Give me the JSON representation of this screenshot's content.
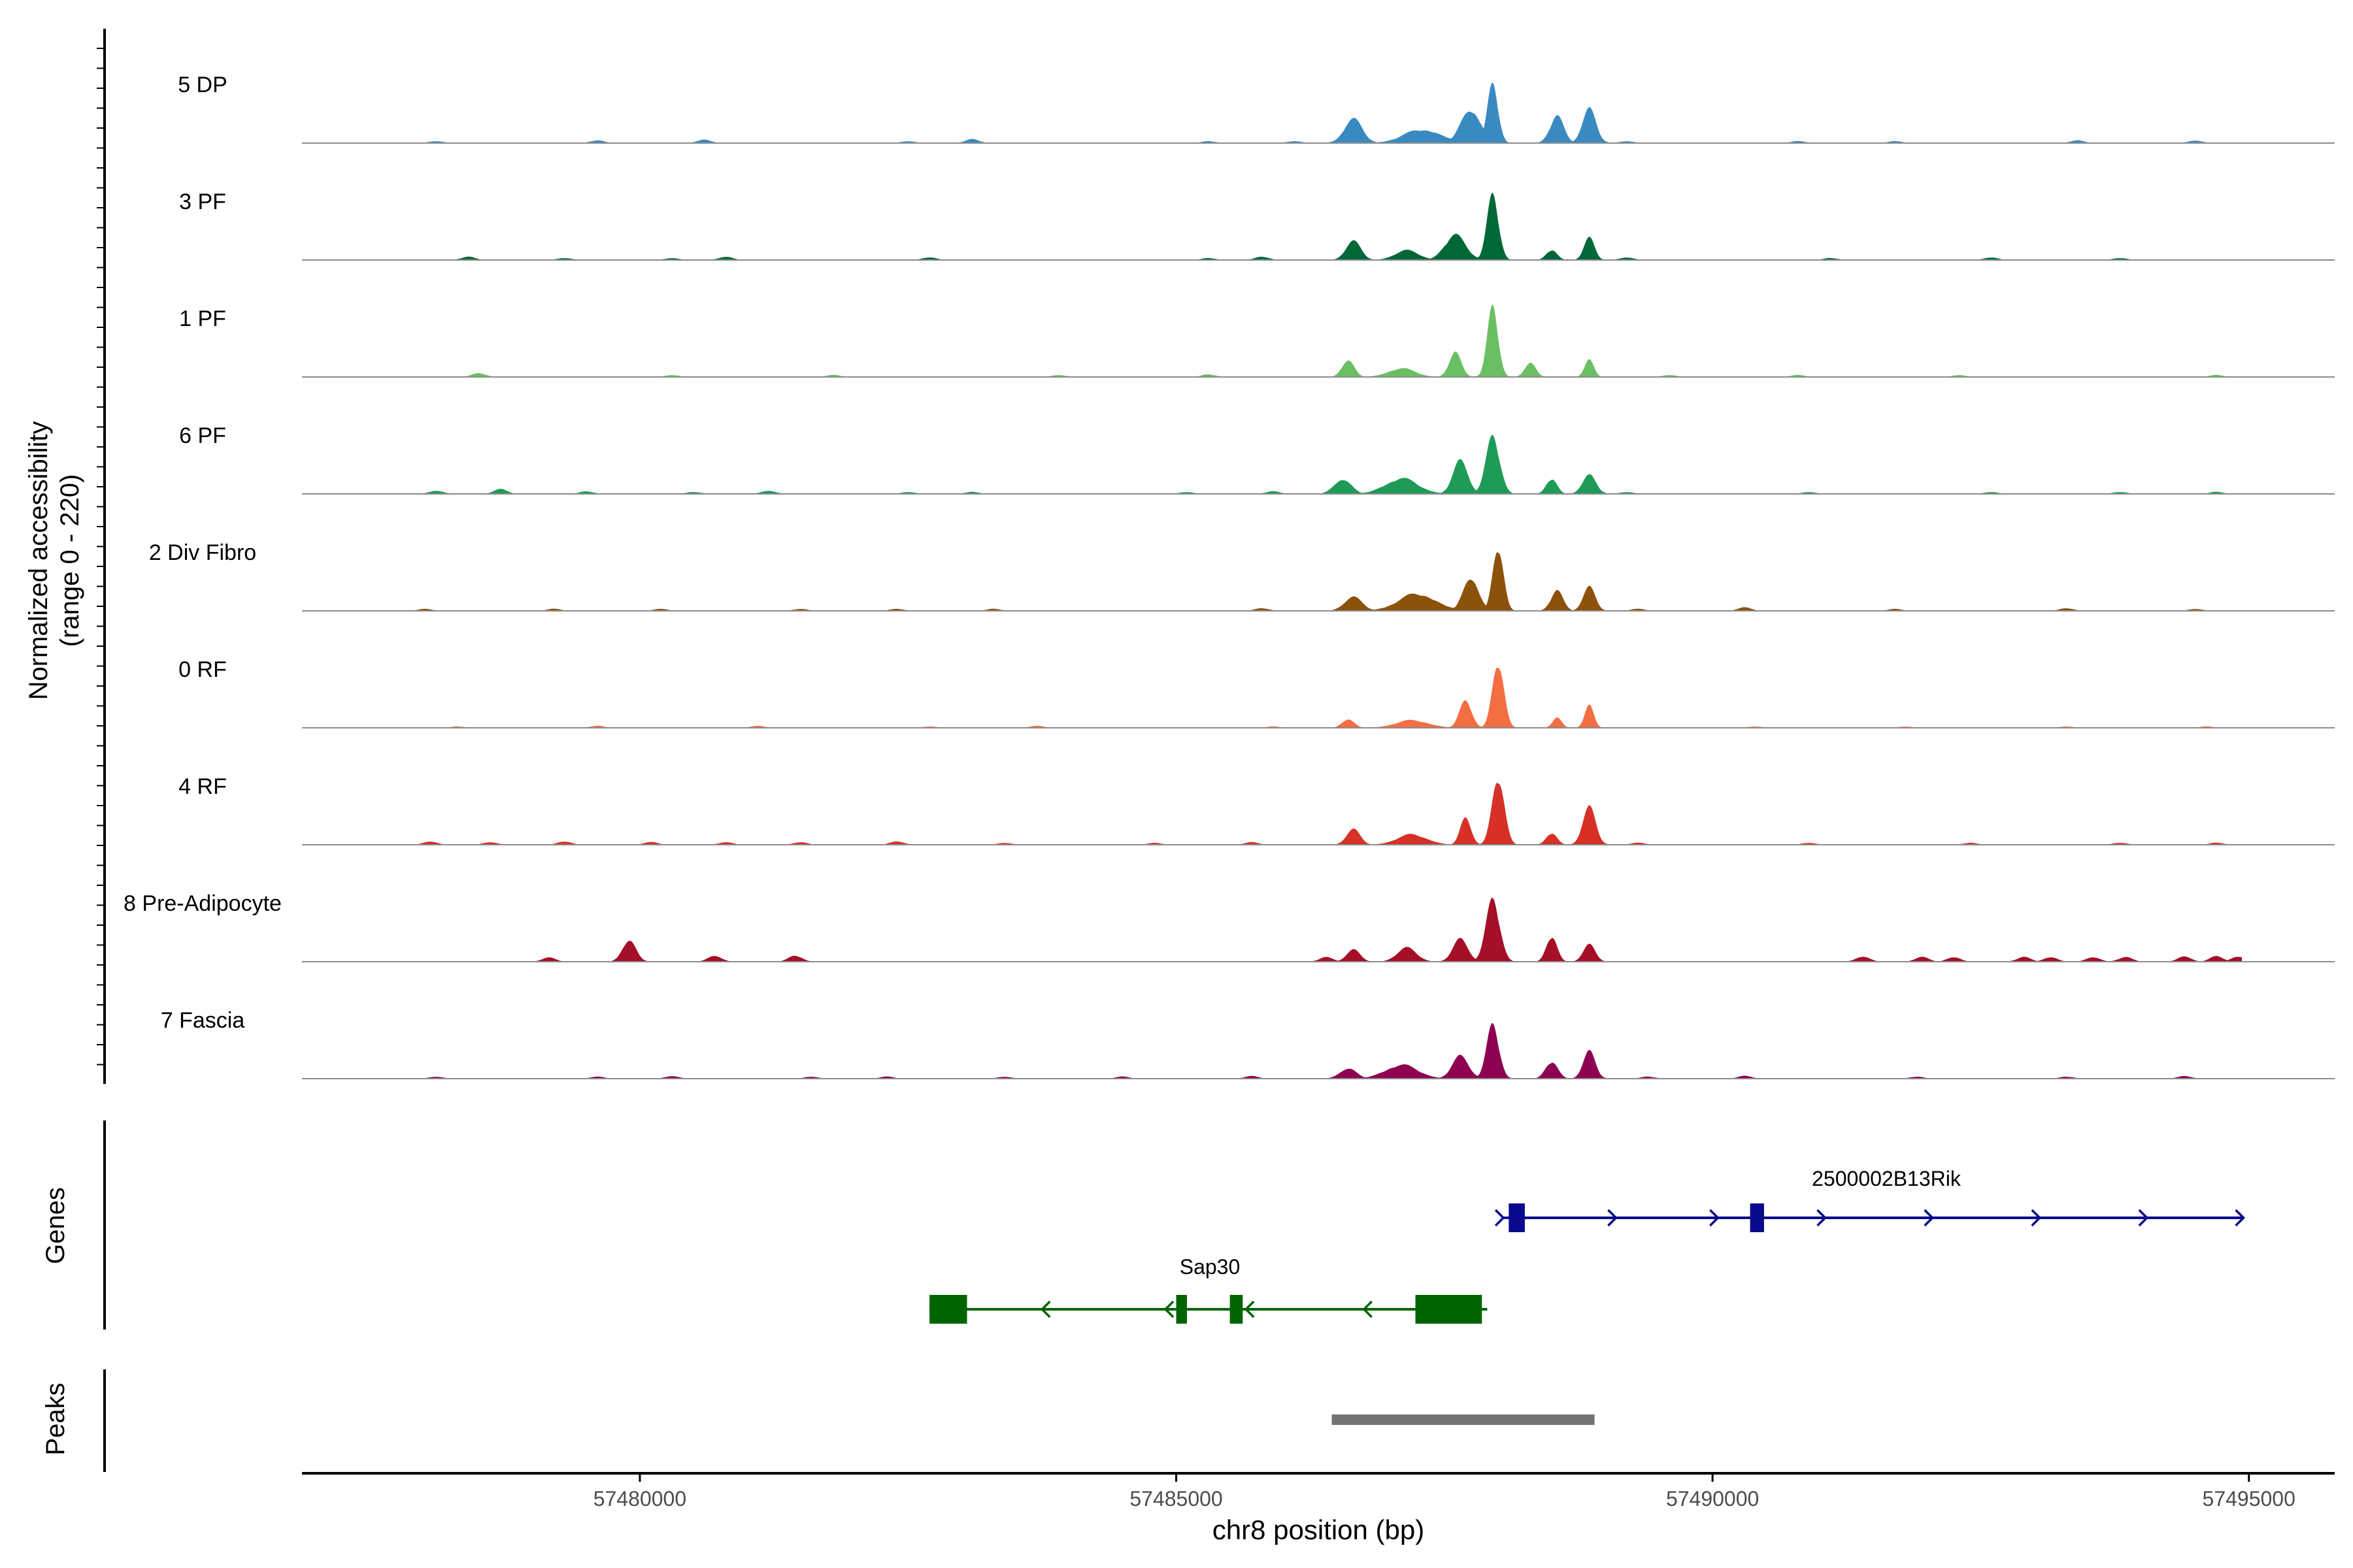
{
  "chart_data": {
    "type": "area",
    "title": "",
    "xlabel": "chr8 position (bp)",
    "ylabel_line1": "Normalized accessibility",
    "ylabel_line2": "(range 0 - 220)",
    "y_range": [
      0,
      220
    ],
    "xlim": [
      57476850,
      57495800
    ],
    "x_ticks": [
      57480000,
      57485000,
      57490000,
      57495000
    ],
    "x_tick_labels": [
      "57480000",
      "57485000",
      "57490000",
      "57495000"
    ],
    "tracks": [
      {
        "name": "5 DP",
        "color": "#3A8AC2",
        "peak": 215,
        "bumps": [
          [
            57486650,
            120,
            70
          ],
          [
            57487300,
            250,
            40
          ],
          [
            57487750,
            130,
            100
          ],
          [
            57487950,
            70,
            180
          ],
          [
            57488550,
            90,
            80
          ],
          [
            57488850,
            90,
            100
          ]
        ],
        "noise": [
          [
            57478100,
            6
          ],
          [
            57479600,
            8
          ],
          [
            57480600,
            10
          ],
          [
            57482500,
            6
          ],
          [
            57483100,
            12
          ],
          [
            57485300,
            6
          ],
          [
            57486100,
            6
          ],
          [
            57489200,
            6
          ],
          [
            57490800,
            6
          ],
          [
            57491700,
            6
          ],
          [
            57493400,
            8
          ],
          [
            57494500,
            8
          ]
        ]
      },
      {
        "name": "3 PF",
        "color": "#006837",
        "peak": 220,
        "bumps": [
          [
            57486650,
            100,
            55
          ],
          [
            57487150,
            160,
            28
          ],
          [
            57487600,
            140,
            72
          ],
          [
            57487950,
            75,
            200
          ],
          [
            57488500,
            70,
            30
          ],
          [
            57488850,
            70,
            65
          ]
        ],
        "noise": [
          [
            57478400,
            10
          ],
          [
            57479300,
            6
          ],
          [
            57480300,
            6
          ],
          [
            57480800,
            10
          ],
          [
            57482700,
            8
          ],
          [
            57485300,
            6
          ],
          [
            57485800,
            10
          ],
          [
            57489200,
            8
          ],
          [
            57491100,
            6
          ],
          [
            57492600,
            8
          ],
          [
            57493800,
            6
          ]
        ]
      },
      {
        "name": "1 PF",
        "color": "#6BBF63",
        "peak": 215,
        "bumps": [
          [
            57486600,
            80,
            50
          ],
          [
            57487100,
            180,
            25
          ],
          [
            57487600,
            80,
            70
          ],
          [
            57487950,
            70,
            215
          ],
          [
            57488300,
            70,
            45
          ],
          [
            57488850,
            60,
            50
          ]
        ],
        "noise": [
          [
            57478500,
            12
          ],
          [
            57480300,
            6
          ],
          [
            57481800,
            6
          ],
          [
            57483900,
            6
          ],
          [
            57485300,
            8
          ],
          [
            57489600,
            6
          ],
          [
            57490800,
            6
          ],
          [
            57492300,
            6
          ],
          [
            57494700,
            6
          ]
        ]
      },
      {
        "name": "6 PF",
        "color": "#1E9C57",
        "peak": 200,
        "bumps": [
          [
            57486550,
            110,
            45
          ],
          [
            57487100,
            220,
            45
          ],
          [
            57487650,
            100,
            95
          ],
          [
            57487950,
            90,
            175
          ],
          [
            57488500,
            70,
            45
          ],
          [
            57488850,
            90,
            55
          ]
        ],
        "noise": [
          [
            57478100,
            10
          ],
          [
            57478700,
            14
          ],
          [
            57479500,
            8
          ],
          [
            57480500,
            6
          ],
          [
            57481200,
            10
          ],
          [
            57482500,
            6
          ],
          [
            57483100,
            6
          ],
          [
            57485100,
            6
          ],
          [
            57485900,
            8
          ],
          [
            57489200,
            6
          ],
          [
            57490900,
            6
          ],
          [
            57492600,
            6
          ],
          [
            57493800,
            6
          ],
          [
            57494700,
            6
          ]
        ]
      },
      {
        "name": "2 Div Fibro",
        "color": "#8C510A",
        "peak": 215,
        "bumps": [
          [
            57486650,
            120,
            40
          ],
          [
            57487250,
            250,
            50
          ],
          [
            57487750,
            100,
            100
          ],
          [
            57488000,
            70,
            190
          ],
          [
            57488550,
            80,
            60
          ],
          [
            57488850,
            80,
            70
          ]
        ],
        "noise": [
          [
            57478000,
            6
          ],
          [
            57479200,
            6
          ],
          [
            57480200,
            6
          ],
          [
            57481500,
            6
          ],
          [
            57482400,
            6
          ],
          [
            57483300,
            6
          ],
          [
            57485800,
            8
          ],
          [
            57489300,
            6
          ],
          [
            57490300,
            10
          ],
          [
            57491700,
            6
          ],
          [
            57493300,
            8
          ],
          [
            57494500,
            6
          ]
        ]
      },
      {
        "name": "0 RF",
        "color": "#F46D43",
        "peak": 195,
        "bumps": [
          [
            57486600,
            80,
            25
          ],
          [
            57487200,
            220,
            22
          ],
          [
            57487700,
            80,
            80
          ],
          [
            57488000,
            75,
            195
          ],
          [
            57488550,
            60,
            30
          ],
          [
            57488850,
            60,
            65
          ]
        ],
        "noise": [
          [
            57478300,
            4
          ],
          [
            57479600,
            6
          ],
          [
            57481100,
            6
          ],
          [
            57482700,
            4
          ],
          [
            57483700,
            6
          ],
          [
            57485900,
            4
          ],
          [
            57490400,
            4
          ],
          [
            57491800,
            4
          ],
          [
            57493300,
            4
          ],
          [
            57494600,
            4
          ]
        ]
      },
      {
        "name": "4 RF",
        "color": "#D73027",
        "peak": 200,
        "bumps": [
          [
            57486650,
            90,
            45
          ],
          [
            57487200,
            200,
            30
          ],
          [
            57487700,
            70,
            80
          ],
          [
            57488000,
            80,
            200
          ],
          [
            57488500,
            70,
            35
          ],
          [
            57488850,
            85,
            110
          ]
        ],
        "noise": [
          [
            57478050,
            10
          ],
          [
            57478600,
            8
          ],
          [
            57479300,
            10
          ],
          [
            57480100,
            8
          ],
          [
            57480800,
            8
          ],
          [
            57481500,
            8
          ],
          [
            57482400,
            10
          ],
          [
            57483400,
            6
          ],
          [
            57484800,
            6
          ],
          [
            57485700,
            8
          ],
          [
            57489300,
            6
          ],
          [
            57490900,
            6
          ],
          [
            57492400,
            6
          ],
          [
            57493800,
            6
          ],
          [
            57494700,
            6
          ]
        ]
      },
      {
        "name": "8 Pre-Adipocyte",
        "color": "#A50F27",
        "peak": 190,
        "bumps": [
          [
            57486650,
            90,
            35
          ],
          [
            57487150,
            130,
            40
          ],
          [
            57487650,
            100,
            65
          ],
          [
            57487950,
            90,
            190
          ],
          [
            57488500,
            70,
            75
          ],
          [
            57488850,
            80,
            50
          ]
        ],
        "noise": [
          [
            57479150,
            12
          ],
          [
            57479900,
            65
          ],
          [
            57480700,
            18
          ],
          [
            57481450,
            18
          ],
          [
            57486400,
            14
          ],
          [
            57491400,
            16
          ],
          [
            57491950,
            14
          ],
          [
            57492250,
            14
          ],
          [
            57492900,
            14
          ],
          [
            57493150,
            14
          ],
          [
            57493550,
            14
          ],
          [
            57493850,
            14
          ],
          [
            57494400,
            16
          ],
          [
            57494700,
            16
          ],
          [
            57494900,
            16
          ]
        ]
      },
      {
        "name": "7 Fascia",
        "color": "#8E0152",
        "peak": 165,
        "bumps": [
          [
            57486600,
            110,
            30
          ],
          [
            57487100,
            220,
            40
          ],
          [
            57487650,
            110,
            65
          ],
          [
            57487950,
            80,
            165
          ],
          [
            57488500,
            80,
            50
          ],
          [
            57488850,
            80,
            80
          ]
        ],
        "noise": [
          [
            57478100,
            6
          ],
          [
            57479600,
            6
          ],
          [
            57480300,
            8
          ],
          [
            57481600,
            6
          ],
          [
            57482300,
            6
          ],
          [
            57483400,
            6
          ],
          [
            57484500,
            6
          ],
          [
            57485700,
            8
          ],
          [
            57489400,
            6
          ],
          [
            57490300,
            8
          ],
          [
            57491900,
            6
          ],
          [
            57493300,
            6
          ],
          [
            57494400,
            8
          ]
        ]
      }
    ],
    "genes": [
      {
        "name": "2500002B13Rik",
        "color": "#0A0A8C",
        "strand": "+",
        "start": 57488050,
        "end": 57494950,
        "exons": [
          [
            57488100,
            57488250
          ],
          [
            57490350,
            57490480
          ]
        ],
        "arrows": [
          57488050,
          57489100,
          57490050,
          57491050,
          57492050,
          57493050,
          57494050,
          57494950
        ]
      },
      {
        "name": "Sap30",
        "color": "#006400",
        "strand": "-",
        "start": 57482700,
        "end": 57487900,
        "exons": [
          [
            57482700,
            57483050
          ],
          [
            57485000,
            57485100
          ],
          [
            57485500,
            57485620
          ],
          [
            57487230,
            57487850
          ]
        ],
        "arrows": [
          57483750,
          57484900,
          57485650,
          57486750
        ]
      }
    ],
    "peaks": [
      {
        "start": 57486450,
        "end": 57488900
      }
    ],
    "panels": {
      "tracks": "",
      "genes": "Genes",
      "peaks": "Peaks"
    },
    "axis_color": "#4D4D4D",
    "peak_color": "#737373"
  }
}
